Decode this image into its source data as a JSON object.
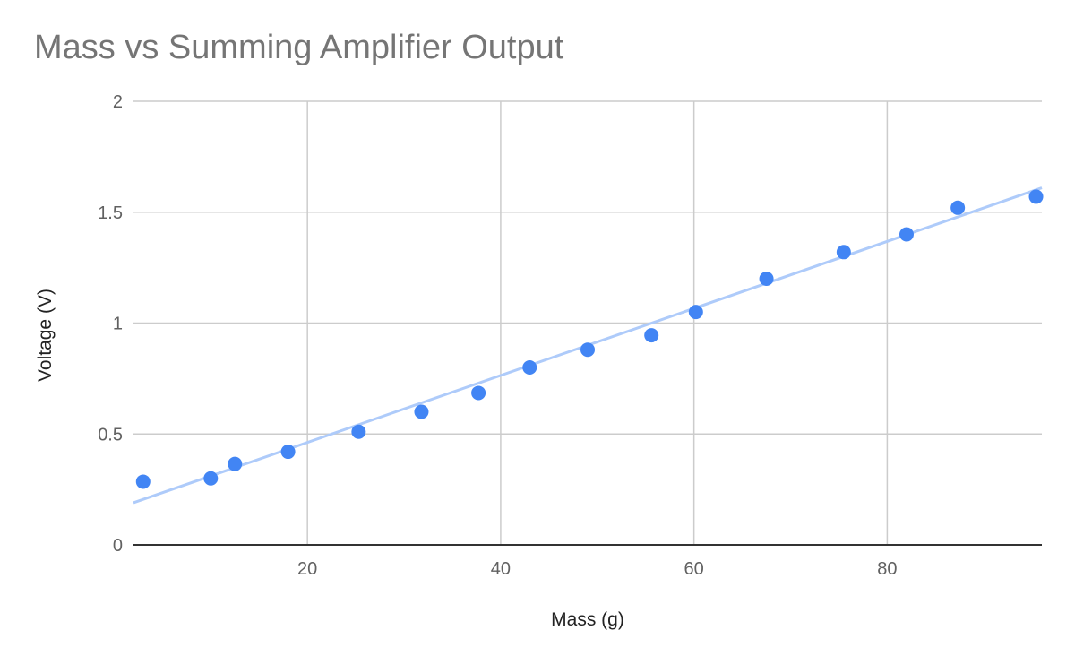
{
  "chart_data": {
    "type": "scatter",
    "title": "Mass vs Summing Amplifier Output",
    "xlabel": "Mass (g)",
    "ylabel": "Voltage (V)",
    "xlim": [
      2,
      96
    ],
    "ylim": [
      0,
      2
    ],
    "xticks": [
      20,
      40,
      60,
      80
    ],
    "yticks": [
      0,
      0.5,
      1,
      1.5,
      2
    ],
    "grid": true,
    "series": [
      {
        "color": "#4285f4",
        "x": [
          3.0,
          10.0,
          12.5,
          18.0,
          25.3,
          31.8,
          37.7,
          43.0,
          49.0,
          55.6,
          60.2,
          67.5,
          75.5,
          82.0,
          87.3,
          95.4
        ],
        "y": [
          0.285,
          0.3,
          0.365,
          0.42,
          0.51,
          0.6,
          0.685,
          0.8,
          0.88,
          0.945,
          1.05,
          1.2,
          1.32,
          1.4,
          1.52,
          1.57
        ]
      }
    ],
    "trendline": {
      "type": "linear",
      "color": "#aecbfa",
      "start": [
        2,
        0.19
      ],
      "end": [
        96,
        1.61
      ]
    }
  }
}
